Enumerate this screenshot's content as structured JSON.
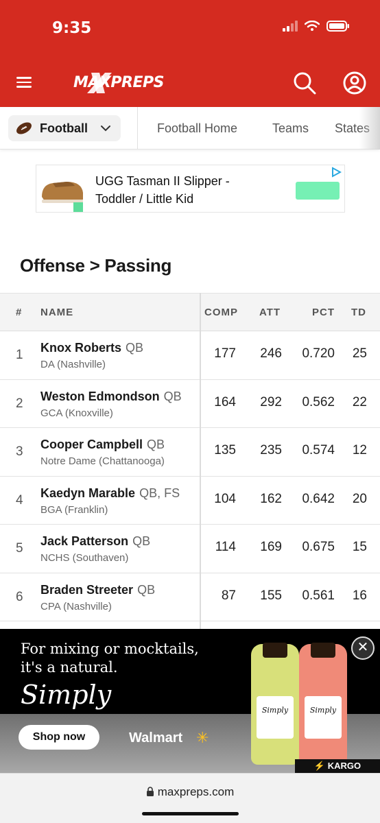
{
  "status_bar": {
    "time": "9:35"
  },
  "app": {
    "logo": "MAXPREPS"
  },
  "subnav": {
    "sport": "Football",
    "links": [
      "Football Home",
      "Teams",
      "States"
    ]
  },
  "ad_top": {
    "title": "UGG Tasman II Slipper -",
    "subtitle": "Toddler / Little Kid"
  },
  "section": {
    "title": "Offense > Passing"
  },
  "table": {
    "headers": {
      "rank": "#",
      "name": "NAME",
      "comp": "COMP",
      "att": "ATT",
      "pct": "PCT",
      "td": "TD"
    },
    "rows": [
      {
        "rank": "1",
        "name": "Knox Roberts",
        "pos": "QB",
        "school": "DA (Nashville)",
        "comp": "177",
        "att": "246",
        "pct": "0.720",
        "td": "25"
      },
      {
        "rank": "2",
        "name": "Weston Edmondson",
        "pos": "QB",
        "school": "GCA (Knoxville)",
        "comp": "164",
        "att": "292",
        "pct": "0.562",
        "td": "22"
      },
      {
        "rank": "3",
        "name": "Cooper Campbell",
        "pos": "QB",
        "school": "Notre Dame (Chattanooga)",
        "comp": "135",
        "att": "235",
        "pct": "0.574",
        "td": "12"
      },
      {
        "rank": "4",
        "name": "Kaedyn Marable",
        "pos": "QB, FS",
        "school": "BGA (Franklin)",
        "comp": "104",
        "att": "162",
        "pct": "0.642",
        "td": "20"
      },
      {
        "rank": "5",
        "name": "Jack Patterson",
        "pos": "QB",
        "school": "NCHS (Southaven)",
        "comp": "114",
        "att": "169",
        "pct": "0.675",
        "td": "15"
      },
      {
        "rank": "6",
        "name": "Braden Streeter",
        "pos": "QB",
        "school": "CPA (Nashville)",
        "comp": "87",
        "att": "155",
        "pct": "0.561",
        "td": "16"
      }
    ]
  },
  "ad_bottom": {
    "headline_1": "For mixing or mocktails,",
    "headline_2": "it's a natural.",
    "brand": "Simply",
    "cta": "Shop now",
    "retailer": "Walmart",
    "badge": "⚡ KARGO",
    "bottle_1": "Simply",
    "bottle_2": "Simply"
  },
  "url_bar": {
    "url": "maxpreps.com"
  },
  "colors": {
    "brand_red": "#d42b20",
    "ad_cta_green": "#76f0b4"
  }
}
